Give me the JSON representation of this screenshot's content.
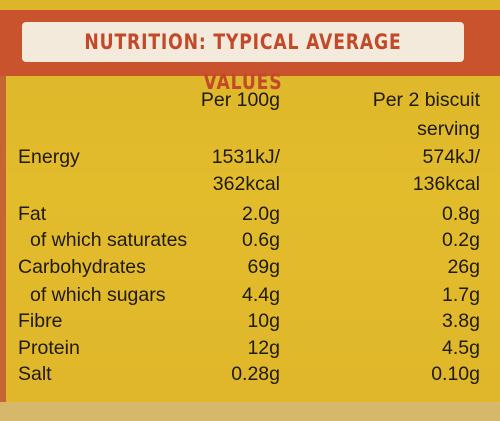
{
  "header": {
    "title": "NUTRITION: TYPICAL AVERAGE VALUES"
  },
  "columns": {
    "per100": "Per 100g",
    "serving_line1": "Per 2 biscuit",
    "serving_line2": "serving"
  },
  "rows": [
    {
      "label": "Energy",
      "per100": "1531kJ/",
      "per100_2": "362kcal",
      "serving": "574kJ/",
      "serving_2": "136kcal"
    },
    {
      "label": "Fat",
      "per100": "2.0g",
      "serving": "0.8g"
    },
    {
      "label": "of which saturates",
      "per100": "0.6g",
      "serving": "0.2g"
    },
    {
      "label": "Carbohydrates",
      "per100": "69g",
      "serving": "26g"
    },
    {
      "label": "of which sugars",
      "per100": "4.4g",
      "serving": "1.7g"
    },
    {
      "label": "Fibre",
      "per100": "10g",
      "serving": "3.8g"
    },
    {
      "label": "Protein",
      "per100": "12g",
      "serving": "4.5g"
    },
    {
      "label": "Salt",
      "per100": "0.28g",
      "serving": "0.10g"
    }
  ],
  "colors": {
    "background": "#e3bc2c",
    "header_band": "#c9532d",
    "header_box": "#f3eadb",
    "header_text": "#c24a2a"
  }
}
